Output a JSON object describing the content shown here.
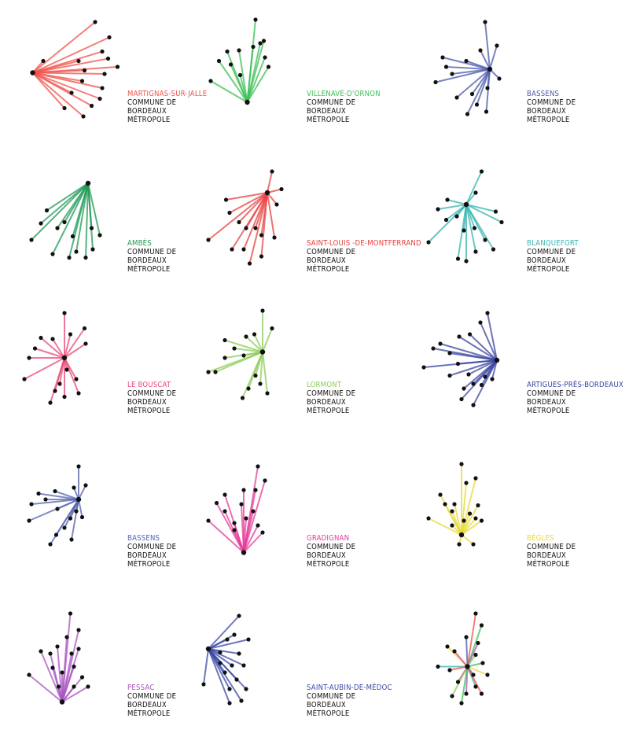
{
  "page_title": "",
  "commune_lines": [
    "COMMUNE DE",
    "BORDEAUX",
    "MÉTROPOLE"
  ],
  "logos": [
    {
      "name": "MARTIGNAS-SUR-JALLE",
      "color": "#f0524a",
      "hub": [
        0.13,
        0.55
      ],
      "spikes": [
        [
          0.66,
          0.12
        ],
        [
          0.78,
          0.25
        ],
        [
          0.72,
          0.37
        ],
        [
          0.52,
          0.45
        ],
        [
          0.77,
          0.43
        ],
        [
          0.57,
          0.53
        ],
        [
          0.74,
          0.56
        ],
        [
          0.55,
          0.62
        ],
        [
          0.72,
          0.68
        ],
        [
          0.46,
          0.72
        ],
        [
          0.7,
          0.77
        ],
        [
          0.63,
          0.83
        ],
        [
          0.4,
          0.85
        ],
        [
          0.56,
          0.92
        ],
        [
          0.85,
          0.5
        ],
        [
          0.22,
          0.45
        ]
      ]
    },
    {
      "name": "VILLENAVE-D'ORNON",
      "color": "#3cbf55",
      "hub": [
        0.43,
        0.8
      ],
      "spikes": [
        [
          0.5,
          0.1
        ],
        [
          0.57,
          0.28
        ],
        [
          0.48,
          0.33
        ],
        [
          0.36,
          0.36
        ],
        [
          0.26,
          0.37
        ],
        [
          0.19,
          0.45
        ],
        [
          0.29,
          0.48
        ],
        [
          0.37,
          0.57
        ],
        [
          0.58,
          0.42
        ],
        [
          0.61,
          0.5
        ],
        [
          0.12,
          0.62
        ],
        [
          0.54,
          0.3
        ]
      ]
    },
    {
      "name": "BASSENS",
      "color": "#4b5aa8",
      "hub": [
        0.62,
        0.52
      ],
      "spikes": [
        [
          0.58,
          0.12
        ],
        [
          0.68,
          0.32
        ],
        [
          0.54,
          0.36
        ],
        [
          0.42,
          0.45
        ],
        [
          0.22,
          0.42
        ],
        [
          0.3,
          0.56
        ],
        [
          0.16,
          0.63
        ],
        [
          0.7,
          0.6
        ],
        [
          0.6,
          0.68
        ],
        [
          0.47,
          0.73
        ],
        [
          0.34,
          0.76
        ],
        [
          0.51,
          0.82
        ],
        [
          0.43,
          0.9
        ],
        [
          0.59,
          0.88
        ],
        [
          0.25,
          0.5
        ]
      ]
    },
    {
      "name": "AMBÈS",
      "color": "#1f9a55",
      "hub": [
        0.6,
        0.22
      ],
      "spikes": [
        [
          0.12,
          0.7
        ],
        [
          0.25,
          0.45
        ],
        [
          0.2,
          0.56
        ],
        [
          0.34,
          0.6
        ],
        [
          0.4,
          0.55
        ],
        [
          0.47,
          0.67
        ],
        [
          0.5,
          0.8
        ],
        [
          0.3,
          0.82
        ],
        [
          0.44,
          0.85
        ],
        [
          0.58,
          0.85
        ],
        [
          0.64,
          0.78
        ],
        [
          0.7,
          0.66
        ],
        [
          0.63,
          0.6
        ]
      ]
    },
    {
      "name": "SAINT-LOUIS -DE-MONTFERRAND",
      "color": "#e94040",
      "hub": [
        0.6,
        0.3
      ],
      "spikes": [
        [
          0.64,
          0.12
        ],
        [
          0.72,
          0.27
        ],
        [
          0.25,
          0.36
        ],
        [
          0.28,
          0.47
        ],
        [
          0.36,
          0.55
        ],
        [
          0.42,
          0.6
        ],
        [
          0.5,
          0.6
        ],
        [
          0.55,
          0.66
        ],
        [
          0.1,
          0.7
        ],
        [
          0.4,
          0.78
        ],
        [
          0.3,
          0.78
        ],
        [
          0.55,
          0.84
        ],
        [
          0.45,
          0.9
        ],
        [
          0.66,
          0.68
        ],
        [
          0.68,
          0.4
        ]
      ]
    },
    {
      "name": "BLANQUEFORT",
      "color": "#38b6b0",
      "hub": [
        0.42,
        0.4
      ],
      "spikes": [
        [
          0.55,
          0.12
        ],
        [
          0.5,
          0.3
        ],
        [
          0.26,
          0.36
        ],
        [
          0.18,
          0.44
        ],
        [
          0.25,
          0.53
        ],
        [
          0.1,
          0.72
        ],
        [
          0.34,
          0.5
        ],
        [
          0.4,
          0.62
        ],
        [
          0.49,
          0.6
        ],
        [
          0.58,
          0.7
        ],
        [
          0.65,
          0.78
        ],
        [
          0.5,
          0.8
        ],
        [
          0.42,
          0.88
        ],
        [
          0.35,
          0.86
        ],
        [
          0.72,
          0.55
        ],
        [
          0.67,
          0.46
        ]
      ]
    },
    {
      "name": "LE BOUSCAT",
      "color": "#ea4a77",
      "hub": [
        0.4,
        0.5
      ],
      "spikes": [
        [
          0.4,
          0.12
        ],
        [
          0.45,
          0.3
        ],
        [
          0.57,
          0.25
        ],
        [
          0.58,
          0.38
        ],
        [
          0.3,
          0.34
        ],
        [
          0.2,
          0.33
        ],
        [
          0.15,
          0.42
        ],
        [
          0.1,
          0.5
        ],
        [
          0.06,
          0.68
        ],
        [
          0.42,
          0.6
        ],
        [
          0.36,
          0.72
        ],
        [
          0.5,
          0.68
        ],
        [
          0.32,
          0.78
        ],
        [
          0.28,
          0.88
        ],
        [
          0.4,
          0.83
        ],
        [
          0.52,
          0.8
        ]
      ]
    },
    {
      "name": "LORMONT",
      "color": "#8ccc5a",
      "hub": [
        0.56,
        0.45
      ],
      "spikes": [
        [
          0.56,
          0.1
        ],
        [
          0.64,
          0.25
        ],
        [
          0.49,
          0.3
        ],
        [
          0.42,
          0.32
        ],
        [
          0.24,
          0.35
        ],
        [
          0.32,
          0.42
        ],
        [
          0.4,
          0.48
        ],
        [
          0.24,
          0.5
        ],
        [
          0.16,
          0.62
        ],
        [
          0.1,
          0.62
        ],
        [
          0.5,
          0.65
        ],
        [
          0.44,
          0.76
        ],
        [
          0.39,
          0.84
        ],
        [
          0.6,
          0.8
        ],
        [
          0.54,
          0.72
        ]
      ]
    },
    {
      "name": "ARTIGUES-PRÈS-BORDEAUX",
      "color": "#3a46a0",
      "hub": [
        0.68,
        0.52
      ],
      "spikes": [
        [
          0.6,
          0.12
        ],
        [
          0.54,
          0.2
        ],
        [
          0.45,
          0.3
        ],
        [
          0.36,
          0.32
        ],
        [
          0.2,
          0.38
        ],
        [
          0.14,
          0.42
        ],
        [
          0.28,
          0.46
        ],
        [
          0.35,
          0.55
        ],
        [
          0.06,
          0.58
        ],
        [
          0.44,
          0.64
        ],
        [
          0.28,
          0.65
        ],
        [
          0.48,
          0.72
        ],
        [
          0.4,
          0.76
        ],
        [
          0.55,
          0.73
        ],
        [
          0.38,
          0.85
        ],
        [
          0.48,
          0.9
        ],
        [
          0.58,
          0.66
        ],
        [
          0.64,
          0.68
        ]
      ]
    },
    {
      "name": "BASSENS",
      "color": "#5563b2",
      "hub": [
        0.52,
        0.4
      ],
      "spikes": [
        [
          0.52,
          0.12
        ],
        [
          0.58,
          0.28
        ],
        [
          0.48,
          0.3
        ],
        [
          0.32,
          0.33
        ],
        [
          0.18,
          0.35
        ],
        [
          0.24,
          0.4
        ],
        [
          0.12,
          0.44
        ],
        [
          0.34,
          0.48
        ],
        [
          0.1,
          0.58
        ],
        [
          0.5,
          0.5
        ],
        [
          0.45,
          0.56
        ],
        [
          0.4,
          0.64
        ],
        [
          0.33,
          0.7
        ],
        [
          0.28,
          0.78
        ],
        [
          0.46,
          0.74
        ],
        [
          0.55,
          0.55
        ]
      ]
    },
    {
      "name": "GRADIGNAN",
      "color": "#e63c9a",
      "hub": [
        0.4,
        0.85
      ],
      "spikes": [
        [
          0.52,
          0.12
        ],
        [
          0.5,
          0.32
        ],
        [
          0.58,
          0.24
        ],
        [
          0.4,
          0.32
        ],
        [
          0.38,
          0.44
        ],
        [
          0.24,
          0.36
        ],
        [
          0.17,
          0.43
        ],
        [
          0.24,
          0.5
        ],
        [
          0.32,
          0.6
        ],
        [
          0.1,
          0.58
        ],
        [
          0.48,
          0.5
        ],
        [
          0.52,
          0.62
        ],
        [
          0.42,
          0.56
        ],
        [
          0.56,
          0.68
        ],
        [
          0.32,
          0.66
        ]
      ]
    },
    {
      "name": "BÈGLES",
      "color": "#e8d83a",
      "hub": [
        0.38,
        0.7
      ],
      "spikes": [
        [
          0.38,
          0.1
        ],
        [
          0.5,
          0.22
        ],
        [
          0.42,
          0.26
        ],
        [
          0.2,
          0.36
        ],
        [
          0.24,
          0.44
        ],
        [
          0.32,
          0.44
        ],
        [
          0.3,
          0.5
        ],
        [
          0.1,
          0.56
        ],
        [
          0.45,
          0.52
        ],
        [
          0.52,
          0.45
        ],
        [
          0.5,
          0.56
        ],
        [
          0.3,
          0.62
        ],
        [
          0.36,
          0.78
        ],
        [
          0.48,
          0.78
        ],
        [
          0.55,
          0.58
        ],
        [
          0.4,
          0.58
        ]
      ]
    },
    {
      "name": "PESSAC",
      "color": "#a856c0",
      "hub": [
        0.38,
        0.85
      ],
      "spikes": [
        [
          0.45,
          0.1
        ],
        [
          0.42,
          0.3
        ],
        [
          0.52,
          0.24
        ],
        [
          0.34,
          0.38
        ],
        [
          0.28,
          0.44
        ],
        [
          0.2,
          0.42
        ],
        [
          0.1,
          0.62
        ],
        [
          0.3,
          0.56
        ],
        [
          0.38,
          0.6
        ],
        [
          0.46,
          0.44
        ],
        [
          0.52,
          0.4
        ],
        [
          0.48,
          0.55
        ],
        [
          0.55,
          0.64
        ],
        [
          0.6,
          0.72
        ],
        [
          0.35,
          0.72
        ],
        [
          0.48,
          0.72
        ]
      ]
    },
    {
      "name": "SAINT-AUBIN-DE-MÉDOC",
      "color": "#3b4aa6",
      "hub": [
        0.1,
        0.4
      ],
      "spikes": [
        [
          0.36,
          0.12
        ],
        [
          0.32,
          0.28
        ],
        [
          0.44,
          0.32
        ],
        [
          0.26,
          0.32
        ],
        [
          0.2,
          0.43
        ],
        [
          0.36,
          0.44
        ],
        [
          0.3,
          0.54
        ],
        [
          0.4,
          0.54
        ],
        [
          0.24,
          0.6
        ],
        [
          0.34,
          0.66
        ],
        [
          0.28,
          0.74
        ],
        [
          0.42,
          0.74
        ],
        [
          0.38,
          0.84
        ],
        [
          0.28,
          0.86
        ],
        [
          0.06,
          0.7
        ],
        [
          0.2,
          0.52
        ]
      ]
    },
    {
      "name": "",
      "color": "#7aa6c8",
      "hub": [
        0.43,
        0.55
      ],
      "spikes": [
        [
          0.5,
          0.1
        ],
        [
          0.55,
          0.2
        ],
        [
          0.42,
          0.3
        ],
        [
          0.26,
          0.38
        ],
        [
          0.32,
          0.42
        ],
        [
          0.18,
          0.55
        ],
        [
          0.52,
          0.35
        ],
        [
          0.5,
          0.45
        ],
        [
          0.28,
          0.58
        ],
        [
          0.56,
          0.52
        ],
        [
          0.48,
          0.62
        ],
        [
          0.6,
          0.62
        ],
        [
          0.35,
          0.68
        ],
        [
          0.5,
          0.72
        ],
        [
          0.42,
          0.78
        ],
        [
          0.3,
          0.8
        ],
        [
          0.55,
          0.78
        ],
        [
          0.38,
          0.86
        ]
      ]
    }
  ]
}
